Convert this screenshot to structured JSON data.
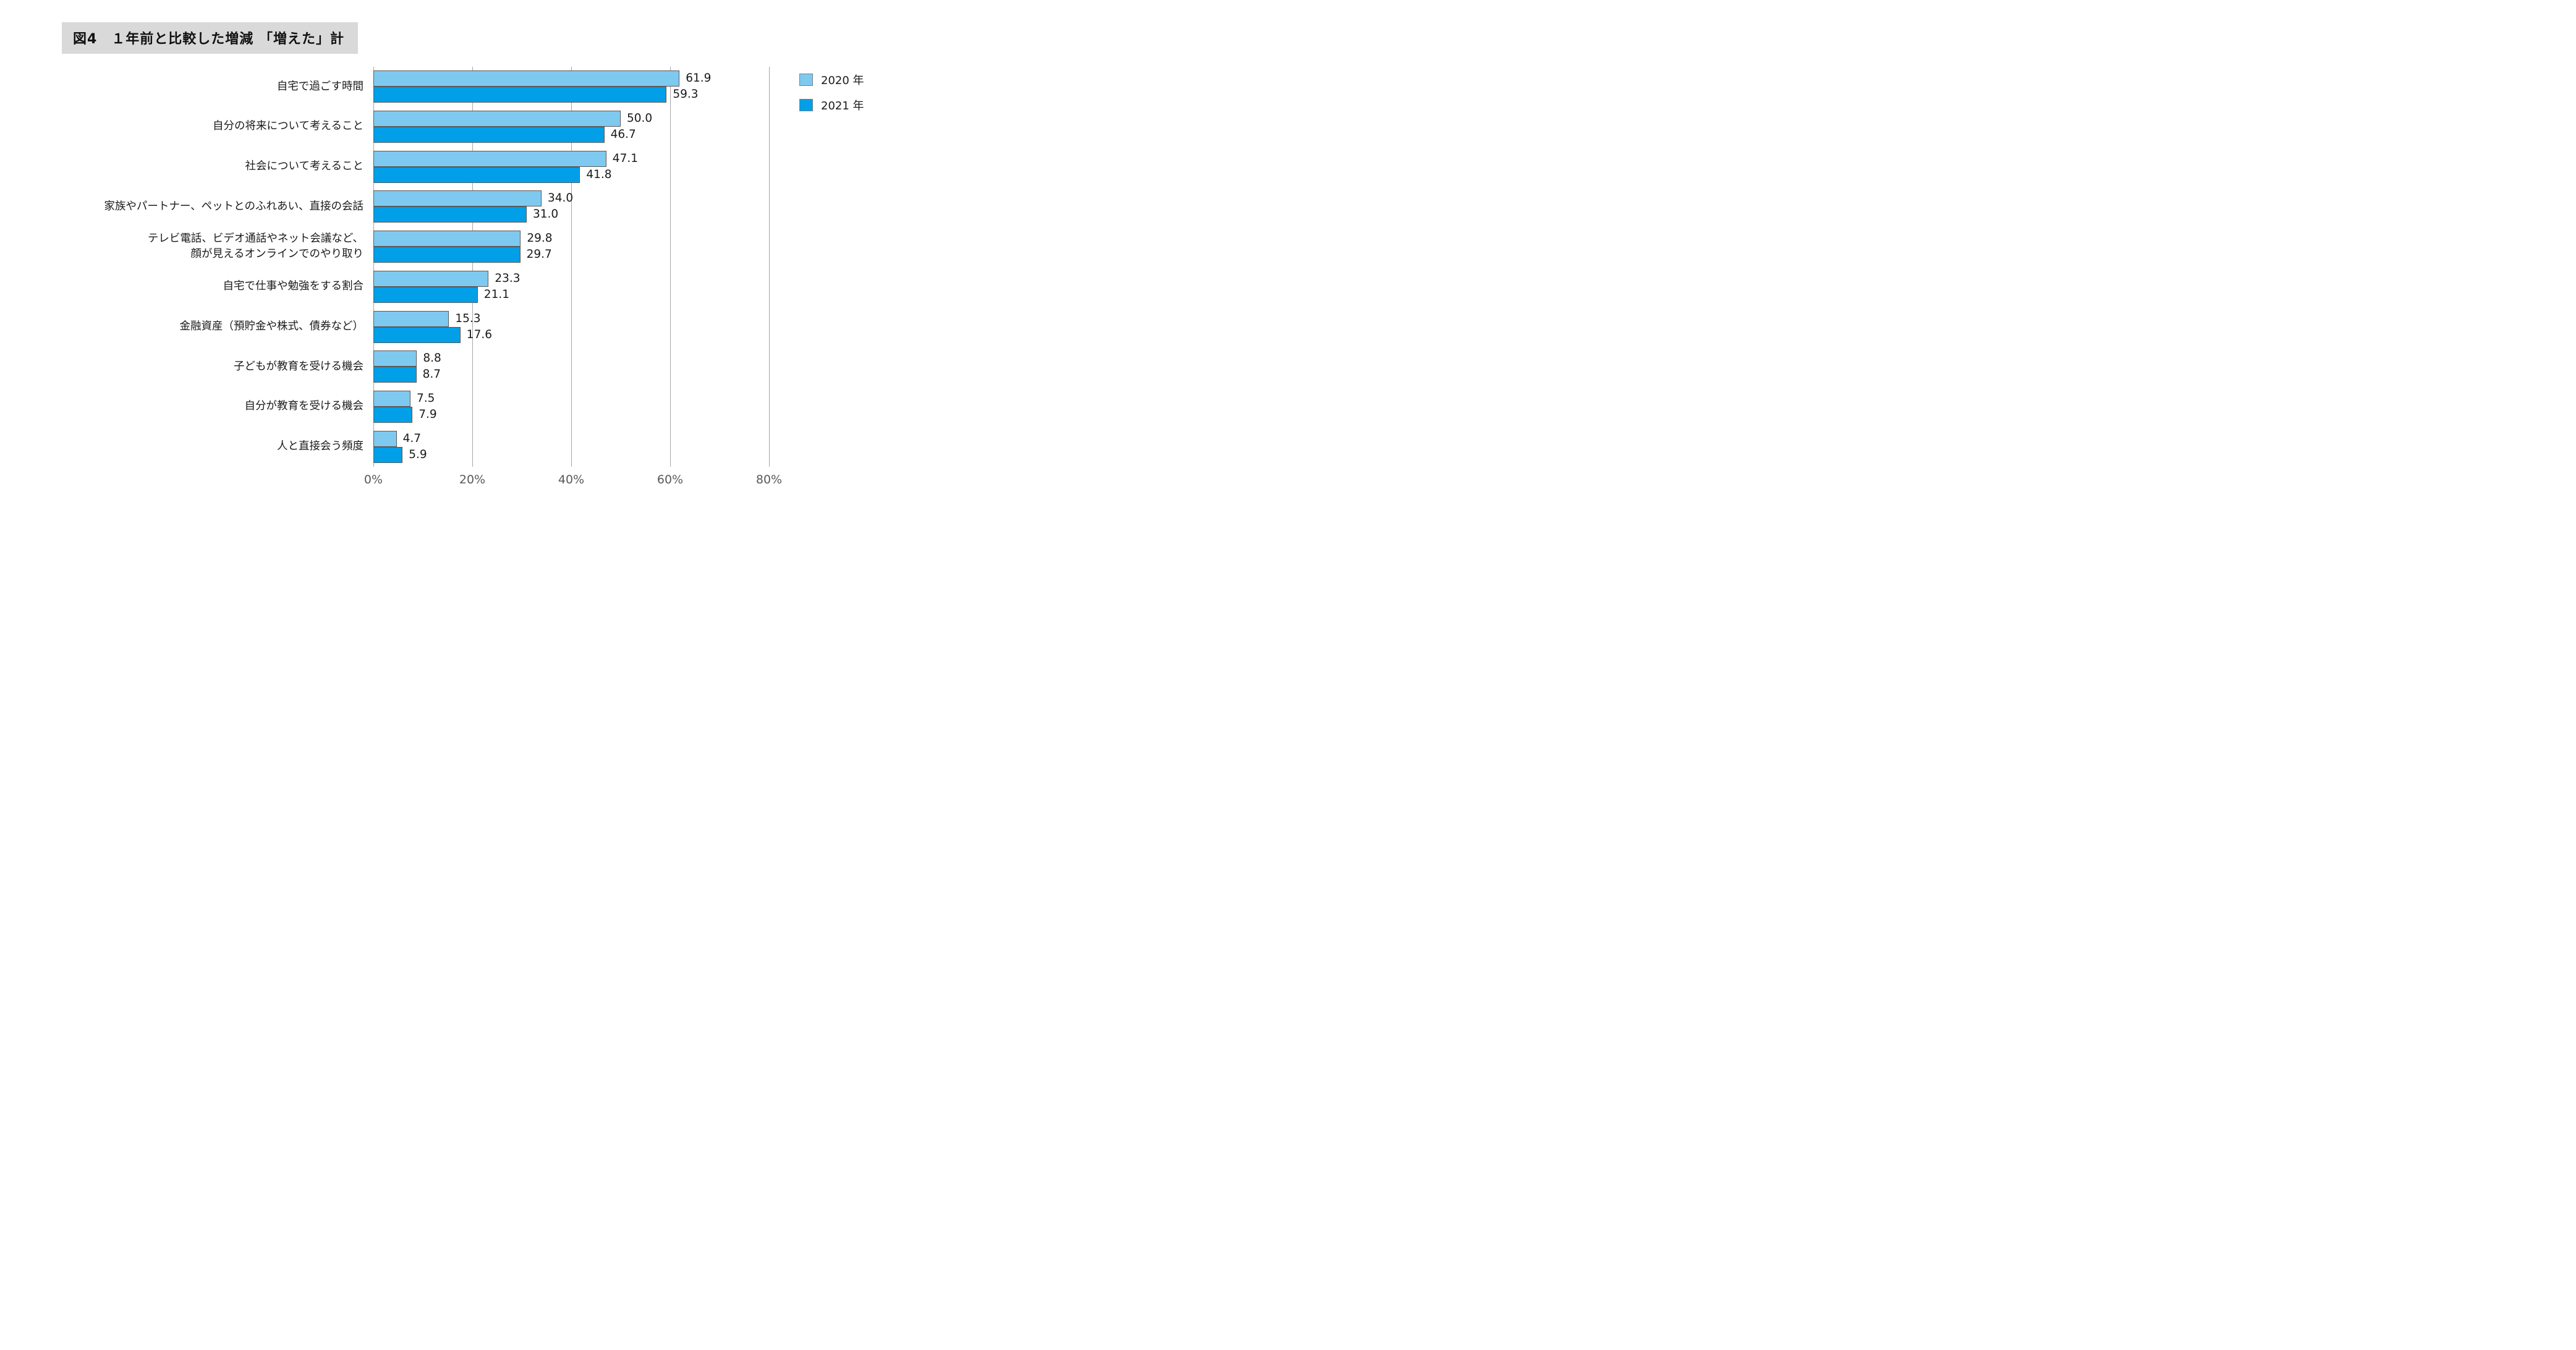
{
  "figure": {
    "title": "図4　１年前と比較した増減 「増えた」計"
  },
  "styles": {
    "title_background": "#d9d9d9",
    "gridline_color": "#a6a6a6",
    "bar_border_color": "#595959",
    "tick_text_color": "#595959",
    "series_2020_color": "#7ec9f0",
    "series_2021_color": "#009fe8"
  },
  "chart_data": {
    "type": "bar",
    "orientation": "horizontal",
    "title": "図4　１年前と比較した増減 「増えた」計",
    "categories": [
      "自宅で過ごす時間",
      "自分の将来について考えること",
      "社会について考えること",
      "家族やパートナー、ペットとのふれあい、直接の会話",
      "テレビ電話、ビデオ通話やネット会議など、\n顔が見えるオンラインでのやり取り",
      "自宅で仕事や勉強をする割合",
      "金融資産（預貯金や株式、債券など）",
      "子どもが教育を受ける機会",
      "自分が教育を受ける機会",
      "人と直接会う頻度"
    ],
    "series": [
      {
        "name": "2020 年",
        "color": "#7ec9f0",
        "values": [
          61.9,
          50.0,
          47.1,
          34.0,
          29.8,
          23.3,
          15.3,
          8.8,
          7.5,
          4.7
        ]
      },
      {
        "name": "2021 年",
        "color": "#009fe8",
        "values": [
          59.3,
          46.7,
          41.8,
          31.0,
          29.7,
          21.1,
          17.6,
          8.7,
          7.9,
          5.9
        ]
      }
    ],
    "value_labels_shown": true,
    "xlim": [
      0,
      80
    ],
    "x_ticks": [
      {
        "value": 0,
        "label": "0%"
      },
      {
        "value": 20,
        "label": "20%"
      },
      {
        "value": 40,
        "label": "40%"
      },
      {
        "value": 60,
        "label": "60%"
      },
      {
        "value": 80,
        "label": "80%"
      }
    ],
    "grid": "vertical",
    "legend_position": "top-right"
  }
}
